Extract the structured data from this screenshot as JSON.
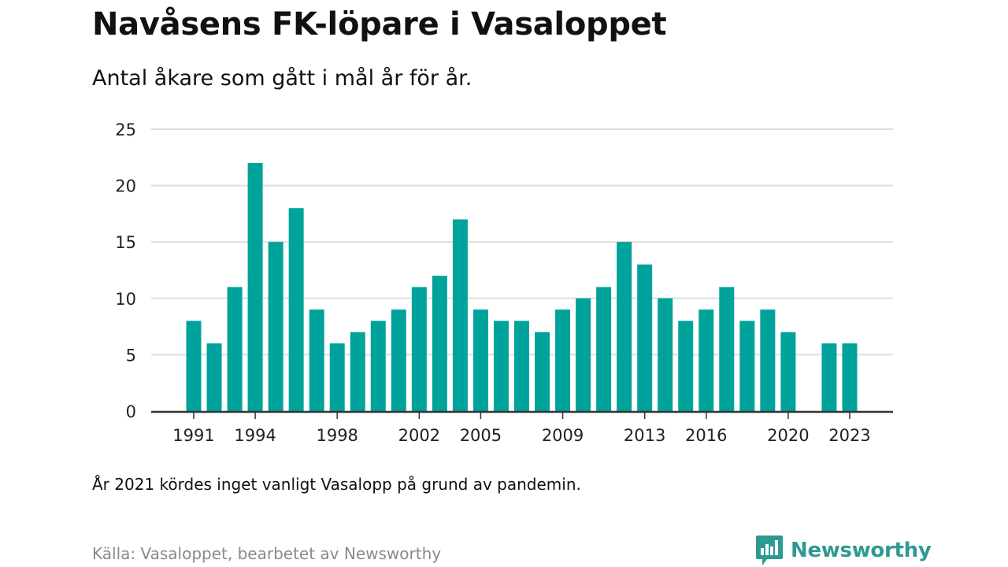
{
  "header": {
    "title": "Navåsens FK-löpare i Vasaloppet",
    "subtitle": "Antal åkare som gått i mål år för år."
  },
  "footer": {
    "note": "År 2021 kördes inget vanligt Vasalopp på grund av pandemin.",
    "source": "Källa: Vasaloppet, bearbetet av Newsworthy",
    "brand": "Newsworthy"
  },
  "colors": {
    "bar": "#00a39b",
    "grid": "#dddddd",
    "axis": "#333333",
    "brand": "#2e9a92"
  },
  "icons": {
    "brand_logo": "bar-chart-speech-bubble-icon"
  },
  "chart_data": {
    "type": "bar",
    "categories": [
      1991,
      1992,
      1993,
      1994,
      1995,
      1996,
      1997,
      1998,
      1999,
      2000,
      2001,
      2002,
      2003,
      2004,
      2005,
      2006,
      2007,
      2008,
      2009,
      2010,
      2011,
      2012,
      2013,
      2014,
      2015,
      2016,
      2017,
      2018,
      2019,
      2020,
      2021,
      2022,
      2023
    ],
    "values": [
      8,
      6,
      11,
      22,
      15,
      18,
      9,
      6,
      7,
      8,
      9,
      11,
      12,
      17,
      9,
      8,
      8,
      7,
      9,
      10,
      11,
      15,
      13,
      10,
      8,
      9,
      11,
      8,
      9,
      7,
      null,
      6,
      6
    ],
    "x_tick_labels": [
      "1991",
      "1994",
      "1998",
      "2002",
      "2005",
      "2009",
      "2013",
      "2016",
      "2020",
      "2023"
    ],
    "y_ticks": [
      0,
      5,
      10,
      15,
      20,
      25
    ],
    "ylim": [
      0,
      25
    ],
    "grid": true,
    "legend": "none"
  }
}
